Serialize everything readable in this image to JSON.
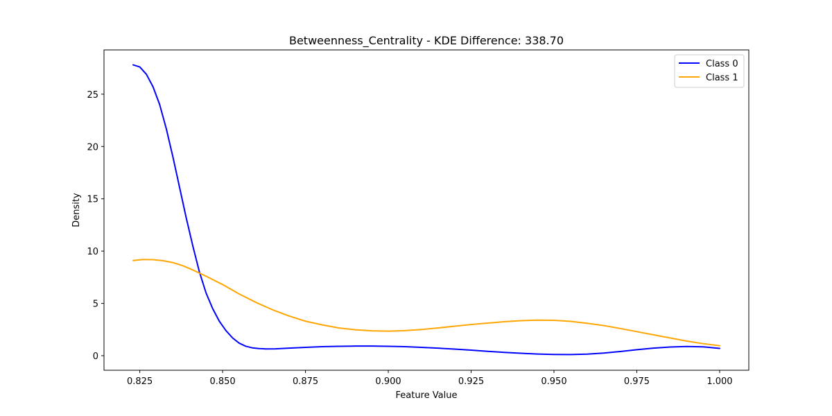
{
  "chart_data": {
    "type": "line",
    "title": "Betweenness_Centrality - KDE Difference: 338.70",
    "xlabel": "Feature Value",
    "ylabel": "Density",
    "xlim": [
      0.8142,
      1.0088
    ],
    "ylim": [
      -1.39,
      29.23
    ],
    "xticks": [
      "0.825",
      "0.850",
      "0.875",
      "0.900",
      "0.925",
      "0.950",
      "0.975",
      "1.000"
    ],
    "yticks": [
      "0",
      "5",
      "10",
      "15",
      "20",
      "25"
    ],
    "grid": false,
    "legend_position": "top-right",
    "series": [
      {
        "name": "Class 0",
        "color": "#0000ff",
        "x": [
          0.823,
          0.825,
          0.827,
          0.829,
          0.831,
          0.833,
          0.835,
          0.837,
          0.839,
          0.841,
          0.843,
          0.845,
          0.847,
          0.849,
          0.851,
          0.853,
          0.855,
          0.857,
          0.859,
          0.861,
          0.863,
          0.866,
          0.87,
          0.875,
          0.88,
          0.885,
          0.89,
          0.895,
          0.9,
          0.905,
          0.91,
          0.915,
          0.92,
          0.925,
          0.93,
          0.935,
          0.94,
          0.945,
          0.95,
          0.955,
          0.96,
          0.965,
          0.97,
          0.975,
          0.98,
          0.985,
          0.99,
          0.995,
          1.0
        ],
        "y": [
          27.8,
          27.6,
          26.9,
          25.7,
          24.0,
          21.7,
          19.0,
          16.1,
          13.2,
          10.5,
          8.0,
          6.0,
          4.5,
          3.3,
          2.4,
          1.7,
          1.2,
          0.9,
          0.75,
          0.68,
          0.65,
          0.66,
          0.72,
          0.8,
          0.86,
          0.9,
          0.92,
          0.92,
          0.9,
          0.86,
          0.8,
          0.72,
          0.63,
          0.53,
          0.42,
          0.32,
          0.23,
          0.16,
          0.12,
          0.11,
          0.15,
          0.25,
          0.4,
          0.57,
          0.72,
          0.83,
          0.88,
          0.85,
          0.7
        ]
      },
      {
        "name": "Class 1",
        "color": "#ffa500",
        "x": [
          0.823,
          0.826,
          0.829,
          0.832,
          0.835,
          0.838,
          0.841,
          0.845,
          0.85,
          0.855,
          0.86,
          0.865,
          0.87,
          0.875,
          0.88,
          0.885,
          0.89,
          0.895,
          0.9,
          0.905,
          0.91,
          0.915,
          0.92,
          0.925,
          0.93,
          0.935,
          0.94,
          0.945,
          0.95,
          0.955,
          0.96,
          0.965,
          0.97,
          0.975,
          0.98,
          0.985,
          0.99,
          0.995,
          1.0
        ],
        "y": [
          9.1,
          9.2,
          9.18,
          9.08,
          8.9,
          8.6,
          8.2,
          7.6,
          6.8,
          5.9,
          5.1,
          4.4,
          3.8,
          3.3,
          2.95,
          2.65,
          2.48,
          2.38,
          2.35,
          2.4,
          2.5,
          2.65,
          2.82,
          2.98,
          3.12,
          3.25,
          3.35,
          3.4,
          3.38,
          3.28,
          3.1,
          2.88,
          2.6,
          2.3,
          2.0,
          1.7,
          1.4,
          1.15,
          0.95
        ]
      }
    ]
  }
}
